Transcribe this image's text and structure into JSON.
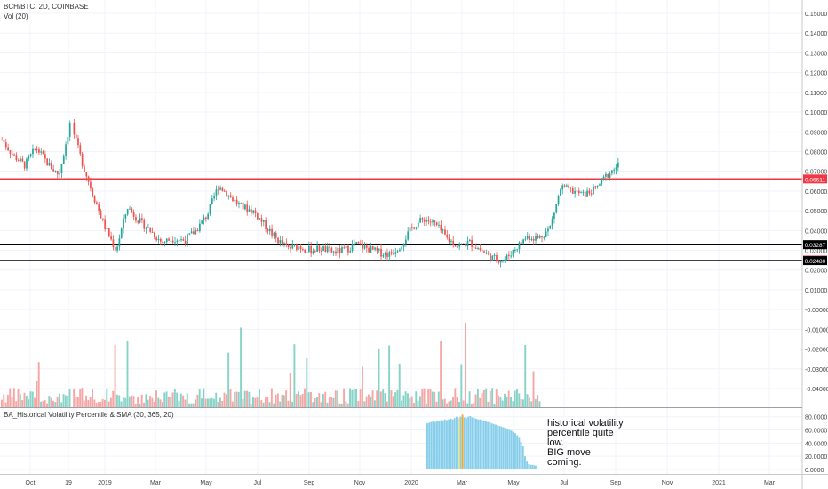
{
  "header": {
    "symbol_line": "BCH/BTC, 2D, COINBASE",
    "volume_line": "Vol (20)",
    "indicator_line": "BA_Historical Volatility Percentile & SMA (30, 365, 20)"
  },
  "annotation": "historical volatility\npercentile quite\nlow.\nBIG move\ncoming.",
  "price_badges": [
    {
      "text": "0.06611",
      "value": 0.06611,
      "color": "#f23645"
    },
    {
      "text": "0.03287",
      "value": 0.03287,
      "color": "#000000"
    },
    {
      "text": "0.02508",
      "value": 0.02508,
      "color": "#f23645"
    },
    {
      "text": "0.02480",
      "value": 0.0248,
      "color": "#000000"
    }
  ],
  "horizontal_lines": [
    {
      "value": 0.06611,
      "color": "#f23645"
    },
    {
      "value": 0.03287,
      "color": "#000000"
    },
    {
      "value": 0.0248,
      "color": "#000000"
    }
  ],
  "colors": {
    "up": "#26a69a",
    "down": "#ef5350",
    "vol_up": "#88d3c8",
    "vol_down": "#f6a7a5",
    "hvp": "#87ceeb",
    "hvp_mark_orange": "#f5a623",
    "hvp_mark_yellow": "#f5e663"
  },
  "chart_data": [
    {
      "type": "candlestick",
      "title": "BCH/BTC, 2D, COINBASE",
      "x_ticks": [
        "Oct",
        "19",
        "2019",
        "Mar",
        "May",
        "Jul",
        "Sep",
        "Nov",
        "2020",
        "Mar",
        "May",
        "Jul",
        "Sep",
        "Nov",
        "2021",
        "Mar"
      ],
      "y_ticks": [
        "0.15000",
        "0.14000",
        "0.13000",
        "0.12000",
        "0.11000",
        "0.10000",
        "0.09000",
        "0.08000",
        "0.07000",
        "0.06000",
        "0.05000",
        "0.04000",
        "0.03000",
        "0.02000",
        "0.01000",
        "-0.00000",
        "-0.01000",
        "-0.02000",
        "-0.03000",
        "-0.04000"
      ],
      "ylim": [
        -0.04,
        0.15
      ],
      "series_close": [
        [
          "Sep 2018",
          0.086
        ],
        [
          "Oct 2018",
          0.078
        ],
        [
          "Oct 2018",
          0.073
        ],
        [
          "Oct 2018",
          0.082
        ],
        [
          "Oct 2018",
          0.074
        ],
        [
          "Nov 2018",
          0.068
        ],
        [
          "Nov 2018",
          0.095
        ],
        [
          "Nov 2018",
          0.075
        ],
        [
          "Nov 2018",
          0.058
        ],
        [
          "Dec 2018",
          0.042
        ],
        [
          "Dec 2018",
          0.03
        ],
        [
          "Dec 2018",
          0.052
        ],
        [
          "Jan 2019",
          0.045
        ],
        [
          "Jan 2019",
          0.04
        ],
        [
          "Feb 2019",
          0.034
        ],
        [
          "Feb 2019",
          0.036
        ],
        [
          "Mar 2019",
          0.035
        ],
        [
          "Mar 2019",
          0.04
        ],
        [
          "Apr 2019",
          0.048
        ],
        [
          "Apr 2019",
          0.063
        ],
        [
          "May 2019",
          0.057
        ],
        [
          "May 2019",
          0.052
        ],
        [
          "Jun 2019",
          0.05
        ],
        [
          "Jun 2019",
          0.043
        ],
        [
          "Jul 2019",
          0.036
        ],
        [
          "Jul 2019",
          0.031
        ],
        [
          "Aug 2019",
          0.032
        ],
        [
          "Aug 2019",
          0.03
        ],
        [
          "Sep 2019",
          0.031
        ],
        [
          "Sep 2019",
          0.029
        ],
        [
          "Oct 2019",
          0.03
        ],
        [
          "Oct 2019",
          0.033
        ],
        [
          "Nov 2019",
          0.031
        ],
        [
          "Nov 2019",
          0.029
        ],
        [
          "Dec 2019",
          0.028
        ],
        [
          "Jan 2020",
          0.033
        ],
        [
          "Jan 2020",
          0.042
        ],
        [
          "Feb 2020",
          0.046
        ],
        [
          "Feb 2020",
          0.043
        ],
        [
          "Mar 2020",
          0.036
        ],
        [
          "Mar 2020",
          0.032
        ],
        [
          "Apr 2020",
          0.034
        ],
        [
          "Apr 2020",
          0.03
        ],
        [
          "May 2020",
          0.026
        ],
        [
          "May 2020",
          0.025
        ],
        [
          "Jun 2020",
          0.031
        ],
        [
          "Jun 2020",
          0.037
        ],
        [
          "Jul 2020",
          0.036
        ],
        [
          "Jul 2020",
          0.041
        ],
        [
          "Jul 2020",
          0.062
        ],
        [
          "Aug 2020",
          0.06
        ],
        [
          "Aug 2020",
          0.058
        ],
        [
          "Aug 2020",
          0.061
        ],
        [
          "Sep 2020",
          0.068
        ],
        [
          "Sep 2020",
          0.073
        ]
      ]
    },
    {
      "type": "bar",
      "title": "Vol (20)",
      "colors_by_direction": true
    },
    {
      "type": "bar",
      "title": "BA_Historical Volatility Percentile & SMA (30, 365, 20)",
      "y_ticks": [
        "80.0000",
        "60.0000",
        "40.0000",
        "20.0000",
        "0.0000"
      ],
      "ylim": [
        0,
        85
      ],
      "values": [
        70,
        71,
        72,
        73,
        72,
        74,
        73,
        75,
        74,
        76,
        75,
        76,
        77,
        76,
        78,
        80,
        78,
        80,
        83,
        79,
        78,
        80,
        81,
        79,
        78,
        77,
        76,
        76,
        75,
        74,
        73,
        72,
        72,
        70,
        69,
        68,
        67,
        66,
        65,
        64,
        63,
        62,
        60,
        59,
        57,
        55,
        52,
        48,
        42,
        35,
        20,
        12,
        8,
        7,
        7,
        6,
        6
      ]
    }
  ]
}
